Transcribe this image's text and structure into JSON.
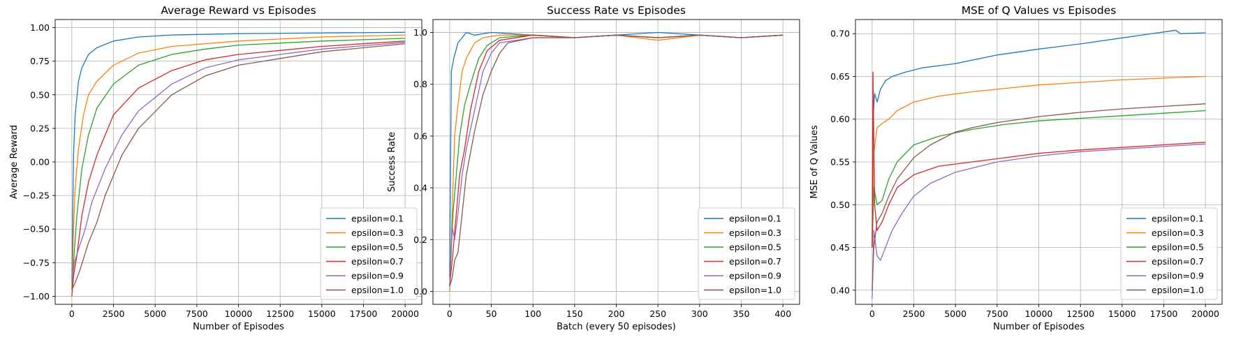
{
  "colors": {
    "epsilon=0.1": "#1f77b4",
    "epsilon=0.3": "#ff7f0e",
    "epsilon=0.5": "#2ca02c",
    "epsilon=0.7": "#d62728",
    "epsilon=0.9": "#9467bd",
    "epsilon=1.0": "#8c564b"
  },
  "chart_data": [
    {
      "type": "line",
      "title": "Average Reward vs Episodes",
      "xlabel": "Number of Episodes",
      "ylabel": "Average Reward",
      "xlim": [
        -1000,
        21000
      ],
      "ylim": [
        -1.06,
        1.06
      ],
      "xticks": [
        0,
        2500,
        5000,
        7500,
        10000,
        12500,
        15000,
        17500,
        20000
      ],
      "yticks": [
        -1.0,
        -0.75,
        -0.5,
        -0.25,
        0.0,
        0.25,
        0.5,
        0.75,
        1.0
      ],
      "ytick_labels": [
        "−1.00",
        "−0.75",
        "−0.50",
        "−0.25",
        "0.00",
        "0.25",
        "0.50",
        "0.75",
        "1.00"
      ],
      "grid": true,
      "legend": "lower-right",
      "series": [
        {
          "name": "epsilon=0.1",
          "x": [
            0,
            100,
            200,
            400,
            600,
            1000,
            1500,
            2500,
            4000,
            6000,
            10000,
            15000,
            20000
          ],
          "y": [
            -0.9,
            0.05,
            0.35,
            0.6,
            0.7,
            0.8,
            0.85,
            0.9,
            0.93,
            0.945,
            0.955,
            0.96,
            0.965
          ]
        },
        {
          "name": "epsilon=0.3",
          "x": [
            0,
            100,
            200,
            400,
            700,
            1000,
            1500,
            2500,
            4000,
            6000,
            10000,
            15000,
            20000
          ],
          "y": [
            -0.95,
            -0.5,
            -0.2,
            0.1,
            0.35,
            0.5,
            0.6,
            0.72,
            0.81,
            0.86,
            0.9,
            0.93,
            0.945
          ]
        },
        {
          "name": "epsilon=0.5",
          "x": [
            0,
            100,
            300,
            600,
            1000,
            1500,
            2500,
            4000,
            6000,
            8000,
            10000,
            15000,
            20000
          ],
          "y": [
            -0.95,
            -0.75,
            -0.4,
            -0.05,
            0.2,
            0.4,
            0.58,
            0.72,
            0.8,
            0.84,
            0.87,
            0.9,
            0.92
          ]
        },
        {
          "name": "epsilon=0.7",
          "x": [
            0,
            100,
            300,
            600,
            1000,
            1500,
            2500,
            4000,
            6000,
            8000,
            10000,
            15000,
            20000
          ],
          "y": [
            -1.0,
            -0.85,
            -0.7,
            -0.4,
            -0.15,
            0.05,
            0.35,
            0.55,
            0.68,
            0.76,
            0.8,
            0.86,
            0.9
          ]
        },
        {
          "name": "epsilon=0.9",
          "x": [
            0,
            150,
            400,
            800,
            1200,
            2000,
            3000,
            4000,
            6000,
            8000,
            10000,
            15000,
            20000
          ],
          "y": [
            -0.9,
            -0.75,
            -0.65,
            -0.5,
            -0.3,
            -0.05,
            0.2,
            0.38,
            0.58,
            0.7,
            0.76,
            0.84,
            0.89
          ]
        },
        {
          "name": "epsilon=1.0",
          "x": [
            0,
            200,
            500,
            1000,
            1500,
            2000,
            3000,
            4000,
            6000,
            8000,
            10000,
            15000,
            20000
          ],
          "y": [
            -0.95,
            -0.9,
            -0.8,
            -0.6,
            -0.45,
            -0.25,
            0.05,
            0.25,
            0.5,
            0.64,
            0.72,
            0.82,
            0.88
          ]
        }
      ]
    },
    {
      "type": "line",
      "title": "Success Rate vs Episodes",
      "xlabel": "Batch (every 50 episodes)",
      "ylabel": "Success Rate",
      "xlim": [
        -20,
        420
      ],
      "ylim": [
        -0.05,
        1.05
      ],
      "xticks": [
        0,
        50,
        100,
        150,
        200,
        250,
        300,
        350,
        400
      ],
      "yticks": [
        0.0,
        0.2,
        0.4,
        0.6,
        0.8,
        1.0
      ],
      "ytick_labels": [
        "0.0",
        "0.2",
        "0.4",
        "0.6",
        "0.8",
        "1.0"
      ],
      "grid": true,
      "legend": "lower-right",
      "series": [
        {
          "name": "epsilon=0.1",
          "x": [
            0,
            2,
            5,
            10,
            15,
            20,
            30,
            50,
            100,
            150,
            200,
            250,
            300,
            350,
            400
          ],
          "y": [
            0.05,
            0.85,
            0.9,
            0.96,
            0.98,
            1.0,
            0.99,
            1.0,
            0.99,
            0.98,
            0.99,
            1.0,
            0.99,
            0.98,
            0.99
          ]
        },
        {
          "name": "epsilon=0.3",
          "x": [
            0,
            3,
            6,
            10,
            15,
            20,
            30,
            40,
            60,
            100,
            150,
            200,
            250,
            300,
            350,
            400
          ],
          "y": [
            0.0,
            0.3,
            0.6,
            0.72,
            0.85,
            0.9,
            0.96,
            0.98,
            0.99,
            0.99,
            0.98,
            0.99,
            0.97,
            0.99,
            0.98,
            0.99
          ]
        },
        {
          "name": "epsilon=0.5",
          "x": [
            0,
            4,
            8,
            12,
            18,
            25,
            35,
            45,
            60,
            100,
            150,
            200,
            250,
            300,
            350,
            400
          ],
          "y": [
            0.02,
            0.3,
            0.45,
            0.6,
            0.72,
            0.8,
            0.9,
            0.95,
            0.98,
            0.99,
            0.98,
            0.99,
            0.98,
            0.99,
            0.98,
            0.99
          ]
        },
        {
          "name": "epsilon=0.7",
          "x": [
            0,
            4,
            8,
            12,
            18,
            25,
            35,
            45,
            60,
            100,
            150,
            200,
            250,
            300,
            350,
            400
          ],
          "y": [
            0.02,
            0.15,
            0.3,
            0.45,
            0.55,
            0.7,
            0.85,
            0.93,
            0.97,
            0.99,
            0.98,
            0.99,
            0.98,
            0.99,
            0.98,
            0.99
          ]
        },
        {
          "name": "epsilon=0.9",
          "x": [
            0,
            3,
            6,
            10,
            15,
            20,
            30,
            40,
            50,
            60,
            100,
            150,
            200,
            250,
            300,
            350,
            400
          ],
          "y": [
            0.02,
            0.25,
            0.2,
            0.3,
            0.45,
            0.55,
            0.7,
            0.85,
            0.92,
            0.96,
            0.98,
            0.98,
            0.99,
            0.98,
            0.99,
            0.98,
            0.99
          ]
        },
        {
          "name": "epsilon=1.0",
          "x": [
            0,
            3,
            6,
            10,
            15,
            20,
            30,
            40,
            50,
            60,
            70,
            100,
            150,
            200,
            250,
            300,
            350,
            400
          ],
          "y": [
            0.02,
            0.05,
            0.12,
            0.15,
            0.3,
            0.45,
            0.62,
            0.76,
            0.85,
            0.92,
            0.96,
            0.98,
            0.98,
            0.99,
            0.98,
            0.99,
            0.98,
            0.99
          ]
        }
      ]
    },
    {
      "type": "line",
      "title": "MSE of Q Values vs Episodes",
      "xlabel": "Number of Episodes",
      "ylabel": "MSE of Q Values",
      "xlim": [
        -1000,
        21000
      ],
      "ylim": [
        0.3835,
        0.7165
      ],
      "xticks": [
        0,
        2500,
        5000,
        7500,
        10000,
        12500,
        15000,
        17500,
        20000
      ],
      "yticks": [
        0.4,
        0.45,
        0.5,
        0.55,
        0.6,
        0.65,
        0.7
      ],
      "ytick_labels": [
        "0.40",
        "0.45",
        "0.50",
        "0.55",
        "0.60",
        "0.65",
        "0.70"
      ],
      "grid": true,
      "legend": "lower-right",
      "series": [
        {
          "name": "epsilon=0.1",
          "x": [
            0,
            50,
            150,
            300,
            500,
            800,
            1200,
            2000,
            3000,
            5000,
            7500,
            10000,
            12500,
            15000,
            17500,
            18200,
            18500,
            20000
          ],
          "y": [
            0.45,
            0.6,
            0.63,
            0.62,
            0.635,
            0.645,
            0.65,
            0.655,
            0.66,
            0.665,
            0.675,
            0.682,
            0.688,
            0.695,
            0.702,
            0.704,
            0.7,
            0.701
          ]
        },
        {
          "name": "epsilon=0.3",
          "x": [
            0,
            100,
            300,
            600,
            1000,
            1500,
            2500,
            4000,
            6000,
            8000,
            10000,
            12500,
            15000,
            17500,
            20000
          ],
          "y": [
            0.45,
            0.56,
            0.59,
            0.595,
            0.6,
            0.61,
            0.62,
            0.627,
            0.632,
            0.636,
            0.64,
            0.643,
            0.646,
            0.648,
            0.65
          ]
        },
        {
          "name": "epsilon=0.5",
          "x": [
            0,
            100,
            300,
            600,
            1000,
            1500,
            2500,
            4000,
            6000,
            8000,
            10000,
            12500,
            15000,
            17500,
            20000
          ],
          "y": [
            0.45,
            0.52,
            0.5,
            0.505,
            0.53,
            0.55,
            0.57,
            0.58,
            0.588,
            0.594,
            0.598,
            0.601,
            0.604,
            0.607,
            0.61
          ]
        },
        {
          "name": "epsilon=0.7",
          "x": [
            0,
            50,
            150,
            300,
            600,
            1000,
            1500,
            2500,
            4000,
            6000,
            8000,
            10000,
            12500,
            15000,
            17500,
            20000
          ],
          "y": [
            0.45,
            0.655,
            0.5,
            0.47,
            0.48,
            0.5,
            0.52,
            0.535,
            0.545,
            0.55,
            0.555,
            0.56,
            0.564,
            0.567,
            0.57,
            0.573
          ]
        },
        {
          "name": "epsilon=0.9",
          "x": [
            0,
            100,
            300,
            500,
            800,
            1200,
            1800,
            2500,
            3500,
            5000,
            7500,
            10000,
            12500,
            15000,
            17500,
            20000
          ],
          "y": [
            0.39,
            0.47,
            0.44,
            0.435,
            0.45,
            0.47,
            0.49,
            0.51,
            0.525,
            0.538,
            0.55,
            0.557,
            0.562,
            0.565,
            0.568,
            0.571
          ]
        },
        {
          "name": "epsilon=1.0",
          "x": [
            0,
            100,
            300,
            600,
            1000,
            1500,
            2500,
            3500,
            5000,
            6000,
            7500,
            10000,
            12500,
            15000,
            17500,
            20000
          ],
          "y": [
            0.4,
            0.45,
            0.48,
            0.49,
            0.51,
            0.53,
            0.555,
            0.57,
            0.585,
            0.59,
            0.596,
            0.603,
            0.608,
            0.612,
            0.615,
            0.618
          ]
        }
      ]
    }
  ]
}
